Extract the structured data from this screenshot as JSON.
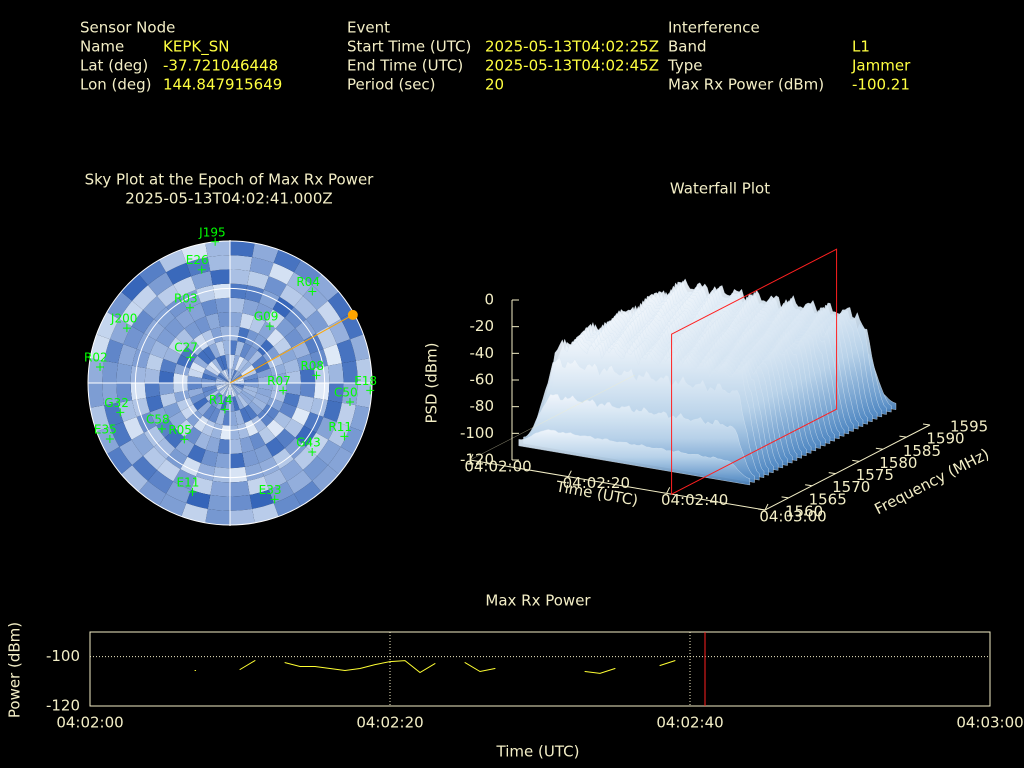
{
  "header": {
    "sensor": {
      "title": "Sensor Node",
      "rows": [
        [
          "Name",
          "KEPK_SN"
        ],
        [
          "Lat (deg)",
          "-37.721046448"
        ],
        [
          "Lon (deg)",
          "144.847915649"
        ]
      ]
    },
    "event": {
      "title": "Event",
      "rows": [
        [
          "Start Time (UTC)",
          "2025-05-13T04:02:25Z"
        ],
        [
          "End Time (UTC)",
          "2025-05-13T04:02:45Z"
        ],
        [
          "Period (sec)",
          "20"
        ]
      ]
    },
    "interference": {
      "title": "Interference",
      "rows": [
        [
          "Band",
          "L1"
        ],
        [
          "Type",
          "Jammer"
        ],
        [
          "Max Rx Power (dBm)",
          "-100.21"
        ]
      ]
    }
  },
  "chart_data": [
    {
      "type": "skyplot",
      "title": "Sky Plot at the Epoch of Max Rx Power",
      "subtitle": "2025-05-13T04:02:41.000Z",
      "rings": [
        0,
        30,
        60
      ],
      "color": "#00ff00",
      "satellites": {
        "names": [
          "J195",
          "E26",
          "E18",
          "C50",
          "G32",
          "E35",
          "E11",
          "E33",
          "R05",
          "R14",
          "R07",
          "R02",
          "J200",
          "G09",
          "R04",
          "R08",
          "G43",
          "R11",
          "R03",
          "C27",
          "C58"
        ],
        "azimuth": [
          354,
          346,
          93,
          99,
          255,
          245,
          199,
          159,
          219,
          191,
          98,
          277,
          298,
          35,
          42,
          85,
          130,
          115,
          332,
          303,
          236
        ],
        "elevation": [
          0,
          16,
          1,
          13,
          18,
          6,
          17,
          11,
          44,
          73,
          56,
          7,
          16,
          46,
          12,
          35,
          22,
          10,
          36,
          60,
          38
        ]
      },
      "interference": {
        "azimuth": 61,
        "elevation": 1,
        "color": "#ffa500"
      }
    },
    {
      "type": "surface3d",
      "title": "Waterfall Plot",
      "xlabel": "Time (UTC)",
      "ylabel": "Frequency (MHz)",
      "zlabel": "PSD (dBm)",
      "xlim": [
        "04:02:00",
        "04:03:00"
      ],
      "xticks": [
        "04:02:00",
        "04:02:20",
        "04:02:40",
        "04:03:00"
      ],
      "ylim": [
        1560,
        1595
      ],
      "yticks": [
        1560,
        1565,
        1570,
        1575,
        1580,
        1585,
        1590,
        1595
      ],
      "zlim": [
        -120,
        0
      ],
      "zticks": [
        -120,
        -100,
        -80,
        -60,
        -40,
        -20,
        0
      ],
      "epoch": "04:02:41",
      "epoch_color": "#ff2020"
    },
    {
      "type": "line",
      "title": "Max Rx Power",
      "xlabel": "Time (UTC)",
      "ylabel": "Power (dBm)",
      "xlim": [
        "04:02:00",
        "04:03:00"
      ],
      "xticks": [
        "04:02:00",
        "04:02:20",
        "04:02:40",
        "04:03:00"
      ],
      "ylim": [
        -120,
        -90
      ],
      "yticks": [
        -120,
        -100
      ],
      "grid": true,
      "color": "#ffff33",
      "x": [
        "04:02:07",
        "04:02:08",
        "04:02:10",
        "04:02:11",
        "04:02:12",
        "04:02:13",
        "04:02:14",
        "04:02:15",
        "04:02:16",
        "04:02:17",
        "04:02:18",
        "04:02:19",
        "04:02:20",
        "04:02:21",
        "04:02:22",
        "04:02:23",
        "04:02:24",
        "04:02:25",
        "04:02:26",
        "04:02:27",
        "04:02:28",
        "04:02:33",
        "04:02:34",
        "04:02:35",
        "04:02:36",
        "04:02:38",
        "04:02:39"
      ],
      "values": [
        -105.6,
        null,
        -105.2,
        -101.6,
        null,
        -102.4,
        -104,
        -104,
        -104.8,
        -105.6,
        -104.8,
        -103.2,
        -102,
        -101.6,
        -106.4,
        -102.8,
        null,
        -102.4,
        -106,
        -104.8,
        null,
        -106,
        -106.8,
        -104.8,
        null,
        -103.6,
        -101.6
      ],
      "epoch": "04:02:41",
      "epoch_color": "#ff2020"
    }
  ]
}
